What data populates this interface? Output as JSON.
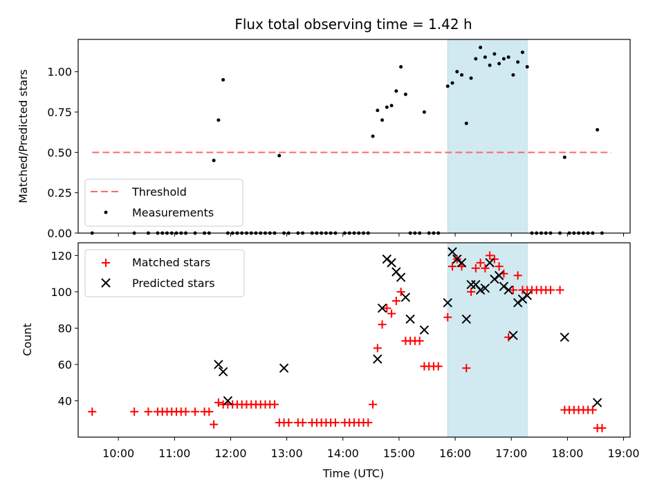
{
  "chart_data": [
    {
      "type": "line",
      "panel": "top",
      "title": "Flux total observing time = 1.42 h",
      "xlabel": "",
      "ylabel": "Matched/Predicted stars",
      "xlim": [
        "09:17",
        "19:07"
      ],
      "ylim": [
        0,
        1.2
      ],
      "yticks": [
        "0.00",
        "0.25",
        "0.50",
        "0.75",
        "1.00"
      ],
      "legend_position": "lower-left",
      "highlight_span": {
        "from": "15:52",
        "to": "17:17",
        "color": "#add8e6"
      },
      "series": [
        {
          "name": "Threshold",
          "kind": "dashed-line",
          "color": "#ff6666",
          "x": [
            "09:32",
            "18:47"
          ],
          "y": [
            0.5,
            0.5
          ]
        },
        {
          "name": "Measurements",
          "kind": "dot",
          "color": "#000000",
          "x": [
            "09:32",
            "10:17",
            "10:32",
            "10:42",
            "10:47",
            "10:52",
            "10:57",
            "11:02",
            "11:07",
            "11:12",
            "11:22",
            "11:32",
            "11:37",
            "11:42",
            "11:47",
            "11:52",
            "11:57",
            "12:02",
            "12:07",
            "12:12",
            "12:17",
            "12:22",
            "12:27",
            "12:32",
            "12:37",
            "12:42",
            "12:47",
            "12:52",
            "12:57",
            "13:02",
            "13:12",
            "13:17",
            "13:27",
            "13:32",
            "13:37",
            "13:42",
            "13:47",
            "13:52",
            "14:02",
            "14:07",
            "14:12",
            "14:17",
            "14:22",
            "14:27",
            "14:32",
            "14:37",
            "14:42",
            "14:47",
            "14:52",
            "14:57",
            "15:02",
            "15:07",
            "15:12",
            "15:17",
            "15:22",
            "15:27",
            "15:32",
            "15:37",
            "15:42",
            "15:52",
            "15:57",
            "16:02",
            "16:07",
            "16:12",
            "16:17",
            "16:22",
            "16:27",
            "16:32",
            "16:37",
            "16:42",
            "16:47",
            "16:52",
            "16:57",
            "17:02",
            "17:07",
            "17:12",
            "17:17",
            "17:22",
            "17:27",
            "17:32",
            "17:37",
            "17:42",
            "17:52",
            "17:57",
            "18:02",
            "18:07",
            "18:12",
            "18:17",
            "18:22",
            "18:27",
            "18:32",
            "18:37"
          ],
          "y": [
            0,
            0,
            0,
            0,
            0,
            0,
            0,
            0,
            0,
            0,
            0,
            0,
            0,
            0.45,
            0.7,
            0.95,
            0,
            0,
            0,
            0,
            0,
            0,
            0,
            0,
            0,
            0,
            0,
            0.48,
            0,
            0,
            0,
            0,
            0,
            0,
            0,
            0,
            0,
            0,
            0,
            0,
            0,
            0,
            0,
            0,
            0.6,
            0.76,
            0.7,
            0.78,
            0.79,
            0.88,
            1.03,
            0.86,
            0,
            0,
            0,
            0.75,
            0,
            0,
            0,
            0.91,
            0.93,
            1.0,
            0.98,
            0.68,
            0.96,
            1.08,
            1.15,
            1.09,
            1.04,
            1.11,
            1.05,
            1.08,
            1.09,
            0.98,
            1.06,
            1.12,
            1.03,
            0,
            0,
            0,
            0,
            0,
            0,
            0.47,
            0,
            0,
            0,
            0,
            0,
            0,
            0.64,
            0
          ]
        }
      ]
    },
    {
      "type": "scatter",
      "panel": "bottom",
      "title": "",
      "xlabel": "Time (UTC)",
      "ylabel": "Count",
      "xlim": [
        "09:17",
        "19:07"
      ],
      "ylim": [
        20,
        127
      ],
      "yticks": [
        "40",
        "60",
        "80",
        "100",
        "120"
      ],
      "xticks": [
        "10:00",
        "11:00",
        "12:00",
        "13:00",
        "14:00",
        "15:00",
        "16:00",
        "17:00",
        "18:00",
        "19:00"
      ],
      "legend_position": "upper-left",
      "highlight_span": {
        "from": "15:52",
        "to": "17:17",
        "color": "#add8e6"
      },
      "series": [
        {
          "name": "Matched stars",
          "marker": "+",
          "color": "#ff0000",
          "x": [
            "09:32",
            "10:17",
            "10:32",
            "10:42",
            "10:47",
            "10:52",
            "10:57",
            "11:02",
            "11:07",
            "11:12",
            "11:22",
            "11:32",
            "11:37",
            "11:42",
            "11:47",
            "11:52",
            "11:57",
            "12:02",
            "12:07",
            "12:12",
            "12:17",
            "12:22",
            "12:27",
            "12:32",
            "12:37",
            "12:42",
            "12:47",
            "12:52",
            "12:57",
            "13:02",
            "13:12",
            "13:17",
            "13:27",
            "13:32",
            "13:37",
            "13:42",
            "13:47",
            "13:52",
            "14:02",
            "14:07",
            "14:12",
            "14:17",
            "14:22",
            "14:27",
            "14:32",
            "14:37",
            "14:42",
            "14:47",
            "14:52",
            "14:57",
            "15:02",
            "15:07",
            "15:12",
            "15:17",
            "15:22",
            "15:27",
            "15:32",
            "15:37",
            "15:42",
            "15:52",
            "15:57",
            "16:02",
            "16:07",
            "16:12",
            "16:17",
            "16:22",
            "16:27",
            "16:32",
            "16:37",
            "16:42",
            "16:47",
            "16:52",
            "16:57",
            "17:02",
            "17:07",
            "17:12",
            "17:17",
            "17:22",
            "17:27",
            "17:32",
            "17:37",
            "17:42",
            "17:52",
            "17:57",
            "18:02",
            "18:07",
            "18:12",
            "18:17",
            "18:22",
            "18:27",
            "18:32",
            "18:37"
          ],
          "y": [
            34,
            34,
            34,
            34,
            34,
            34,
            34,
            34,
            34,
            34,
            34,
            34,
            34,
            27,
            39,
            38,
            38,
            38,
            38,
            38,
            38,
            38,
            38,
            38,
            38,
            38,
            38,
            28,
            28,
            28,
            28,
            28,
            28,
            28,
            28,
            28,
            28,
            28,
            28,
            28,
            28,
            28,
            28,
            28,
            38,
            69,
            82,
            91,
            88,
            95,
            100,
            73,
            73,
            73,
            73,
            59,
            59,
            59,
            59,
            86,
            114,
            118,
            114,
            58,
            100,
            113,
            116,
            113,
            120,
            118,
            114,
            110,
            75,
            101,
            109,
            101,
            101,
            101,
            101,
            101,
            101,
            101,
            101,
            35,
            35,
            35,
            35,
            35,
            35,
            35,
            25,
            25
          ]
        },
        {
          "name": "Predicted stars",
          "marker": "x",
          "color": "#000000",
          "x": [
            "11:47",
            "11:52",
            "11:57",
            "12:57",
            "14:37",
            "14:42",
            "14:47",
            "14:52",
            "14:57",
            "15:02",
            "15:07",
            "15:12",
            "15:27",
            "15:52",
            "15:57",
            "16:02",
            "16:07",
            "16:12",
            "16:17",
            "16:22",
            "16:27",
            "16:32",
            "16:37",
            "16:42",
            "16:47",
            "16:52",
            "16:57",
            "17:02",
            "17:07",
            "17:12",
            "17:17",
            "17:57",
            "18:32"
          ],
          "y": [
            60,
            56,
            40,
            58,
            63,
            91,
            118,
            116,
            111,
            108,
            97,
            85,
            79,
            94,
            122,
            118,
            116,
            85,
            104,
            104,
            101,
            102,
            116,
            107,
            109,
            103,
            101,
            76,
            94,
            96,
            98,
            75,
            39
          ]
        }
      ]
    }
  ]
}
